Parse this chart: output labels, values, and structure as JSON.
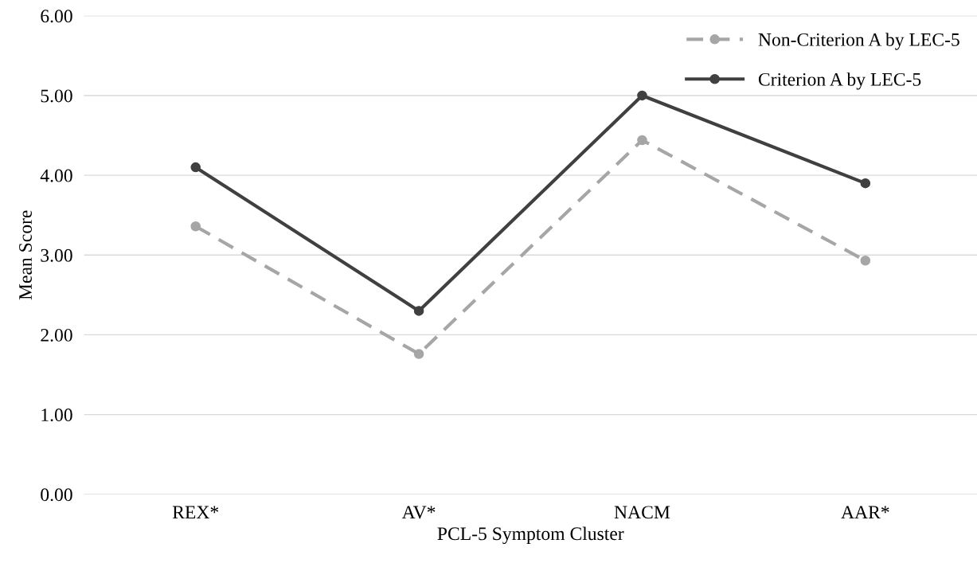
{
  "chart_data": {
    "type": "line",
    "xlabel": "PCL-5 Symptom Cluster",
    "ylabel": "Mean Score",
    "categories": [
      "REX*",
      "AV*",
      "NACM",
      "AAR*"
    ],
    "series": [
      {
        "name": "Non-Criterion A by LEC-5",
        "color": "#a6a6a6",
        "values": [
          3.36,
          1.76,
          4.44,
          2.93
        ],
        "line_style": "dashed"
      },
      {
        "name": "Criterion A by LEC-5",
        "color": "#404040",
        "values": [
          4.1,
          2.3,
          5.0,
          3.9
        ],
        "line_style": "solid"
      }
    ],
    "ylim": [
      0,
      6
    ],
    "yticks": [
      {
        "value": 0,
        "label": "0.00"
      },
      {
        "value": 1,
        "label": "1.00"
      },
      {
        "value": 2,
        "label": "2.00"
      },
      {
        "value": 3,
        "label": "3.00"
      },
      {
        "value": 4,
        "label": "4.00"
      },
      {
        "value": 5,
        "label": "5.00"
      },
      {
        "value": 6,
        "label": "6.00"
      }
    ],
    "grid": "y",
    "legend": "top right",
    "marker": "circle"
  }
}
